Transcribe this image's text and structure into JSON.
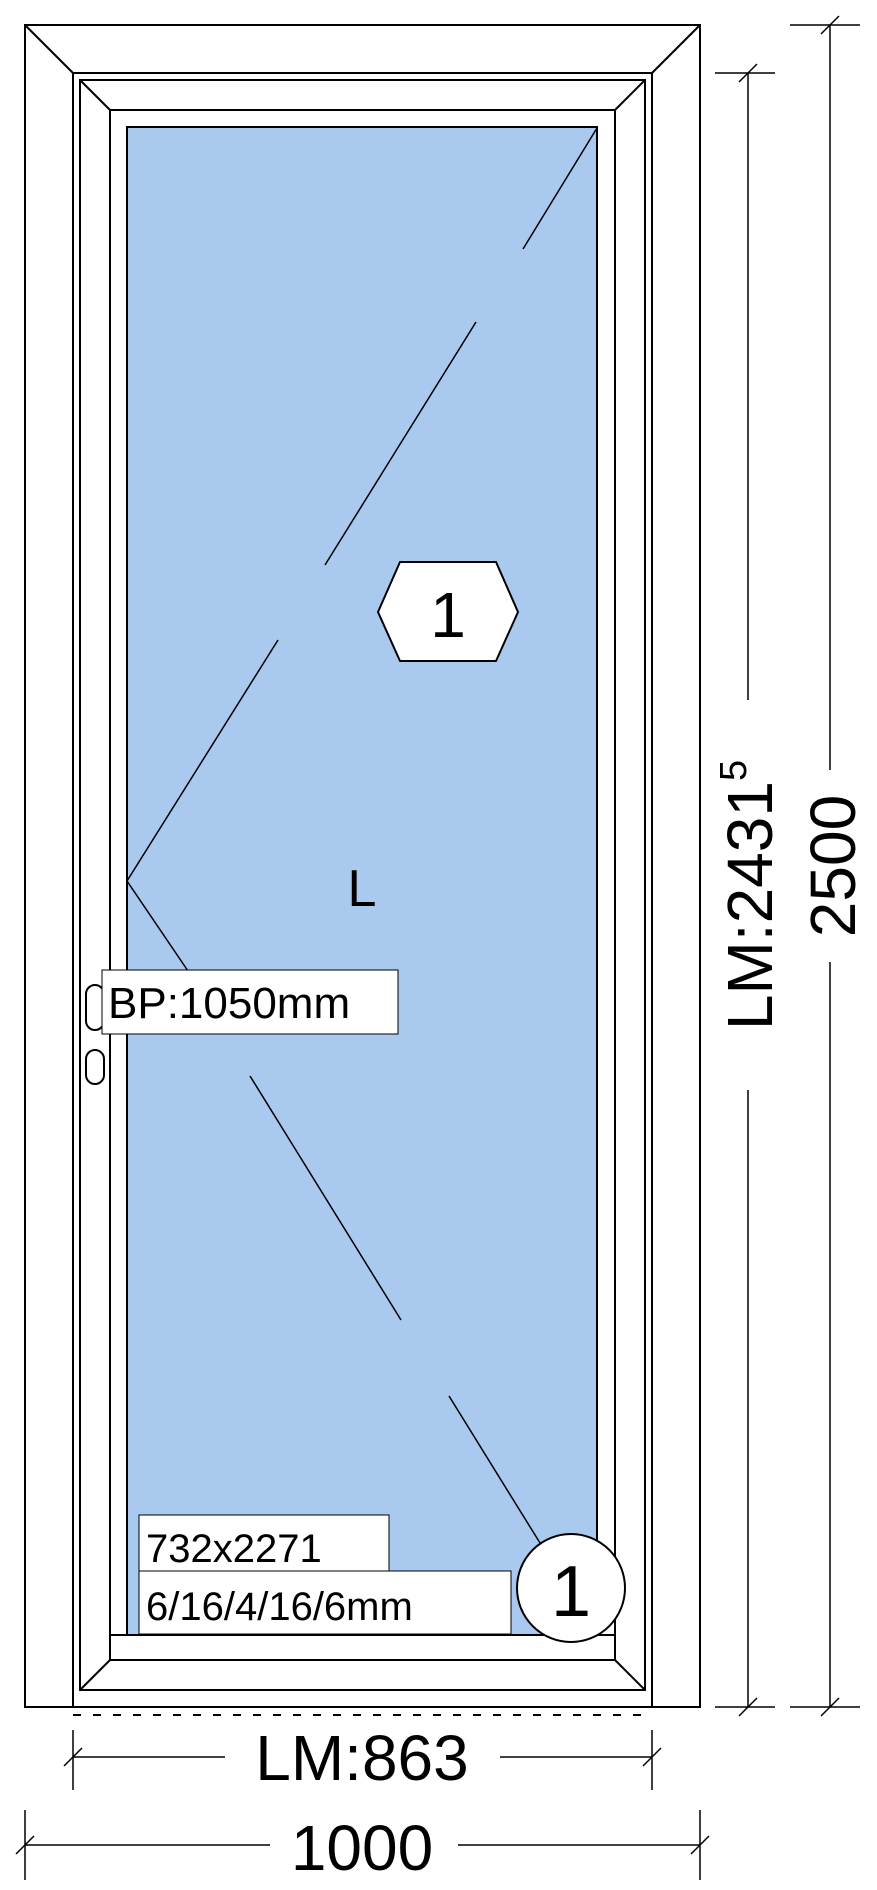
{
  "colors": {
    "glass": "#a9c9ef",
    "frame": "#ffffff",
    "line": "#000000"
  },
  "icons": {
    "panel_marker": "hexagon",
    "glass_marker": "circle",
    "handle": "door-handle"
  },
  "labels": {
    "panel_number": "1",
    "opening_side": "L",
    "handle_height": "BP:1050mm",
    "glass_size": "732x2271",
    "glass_spec": "6/16/4/16/6mm",
    "glass_number": "1"
  },
  "dimensions": {
    "light_width": "LM:863",
    "total_width": "1000",
    "light_height": "LM:2431",
    "light_height_superscript": "5",
    "total_height": "2500"
  }
}
